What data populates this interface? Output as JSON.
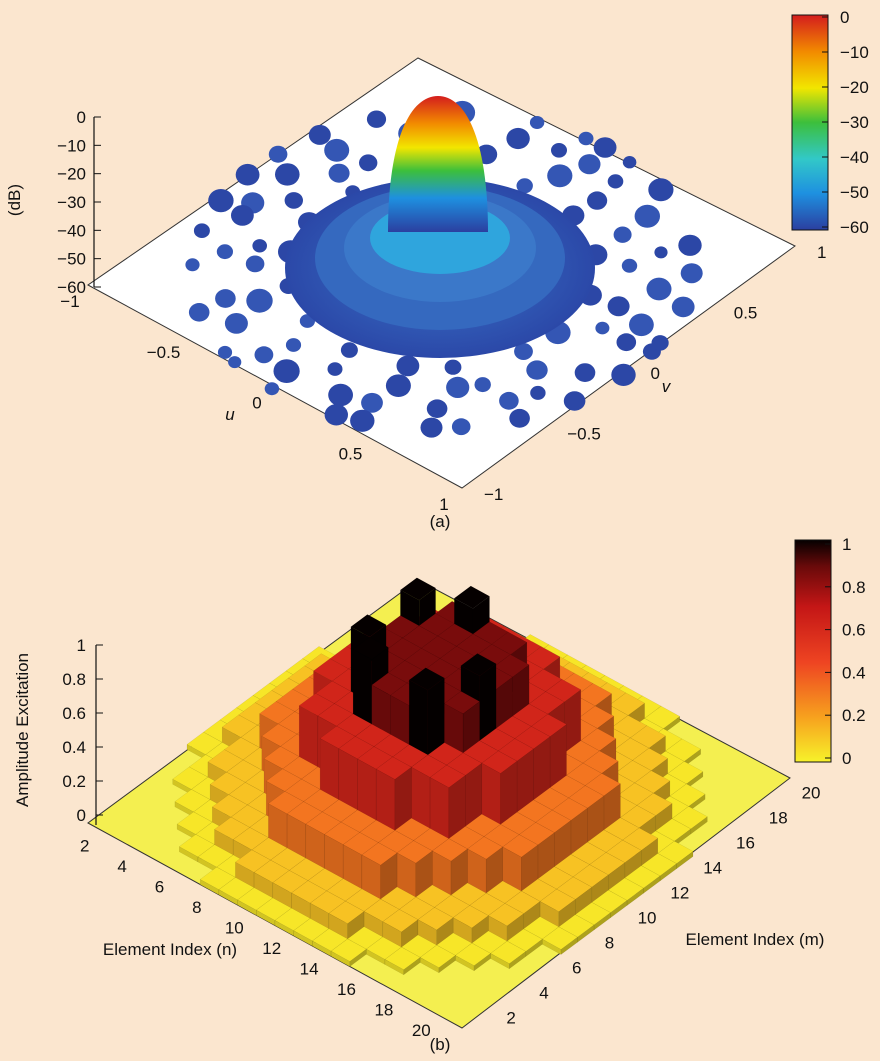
{
  "chart_data": [
    {
      "type": "surface",
      "panel_label": "(a)",
      "zlabel": "(dB)",
      "xlabel": "u",
      "ylabel": "v",
      "zlim": [
        -60,
        0
      ],
      "xlim": [
        -1,
        1
      ],
      "ylim": [
        -1,
        1
      ],
      "z_ticks": [
        "0",
        "−10",
        "−20",
        "−30",
        "−40",
        "−50",
        "−60"
      ],
      "u_ticks": [
        "−1",
        "−0.5",
        "0",
        "0.5",
        "1"
      ],
      "v_ticks": [
        "−1",
        "−0.5",
        "0",
        "0.5",
        "1"
      ],
      "colorbar_ticks": [
        "0",
        "−10",
        "−20",
        "−30",
        "−40",
        "−50",
        "−60"
      ],
      "main_beam_peak_db": 0,
      "sidelobe_floor_db": -60,
      "colormap": [
        "#2b3fa0",
        "#1e90e0",
        "#32c8c8",
        "#3cbf3c",
        "#f2e600",
        "#f28a00",
        "#d41d1d"
      ]
    },
    {
      "type": "bar3d",
      "panel_label": "(b)",
      "zlabel": "Amplitude Excitation",
      "xlabel": "Element Index (n)",
      "ylabel": "Element Index (m)",
      "zlim": [
        0,
        1
      ],
      "z_ticks": [
        "0",
        "0.2",
        "0.4",
        "0.6",
        "0.8",
        "1"
      ],
      "n_ticks": [
        "2",
        "4",
        "6",
        "8",
        "10",
        "12",
        "14",
        "16",
        "18",
        "20"
      ],
      "m_ticks": [
        "2",
        "4",
        "6",
        "8",
        "10",
        "12",
        "14",
        "16",
        "18",
        "20"
      ],
      "colorbar_ticks": [
        "1",
        "0.8",
        "0.6",
        "0.4",
        "0.2",
        "0"
      ],
      "grid_size": [
        20,
        20
      ],
      "colormap": [
        "#f7f22a",
        "#f7a21e",
        "#ee4422",
        "#c41616",
        "#6a0a0a",
        "#050000"
      ]
    }
  ]
}
